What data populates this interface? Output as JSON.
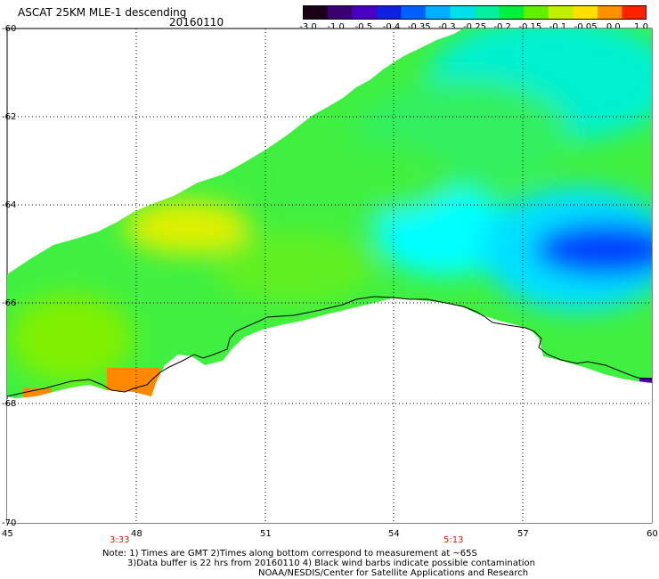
{
  "title": "ASCAT 25KM MLE-1 descending",
  "date": "20160110",
  "colorbar": {
    "labels": [
      "-3.0",
      "-1.0",
      "-0.5",
      "-0.4",
      "-0.35",
      "-0.3",
      "-0.25",
      "-0.2",
      "-0.15",
      "-0.1",
      "-0.05",
      "0.0",
      "1.0"
    ],
    "colors": [
      "#1a0018",
      "#3a0070",
      "#4a00c0",
      "#1020e0",
      "#0060ff",
      "#00b0ff",
      "#00e0e8",
      "#00f0a0",
      "#00f040",
      "#60f000",
      "#c0f000",
      "#ffe000",
      "#ff9000",
      "#ff2000"
    ]
  },
  "axes": {
    "lat_labels": [
      "-60",
      "-62",
      "-64",
      "-66",
      "-68",
      "-70"
    ],
    "lon_labels": [
      "45",
      "48",
      "51",
      "54",
      "57",
      "60"
    ]
  },
  "times": [
    "3:33",
    "5:13"
  ],
  "notes": [
    "Note: 1) Times are GMT 2)Times along bottom correspond to measurement at ~65S",
    "3)Data buffer is 22 hrs from 20160110 4) Black wind barbs indicate possible contamination",
    "NOAA/NESDIS/Center for Satellite Applications and Research"
  ]
}
